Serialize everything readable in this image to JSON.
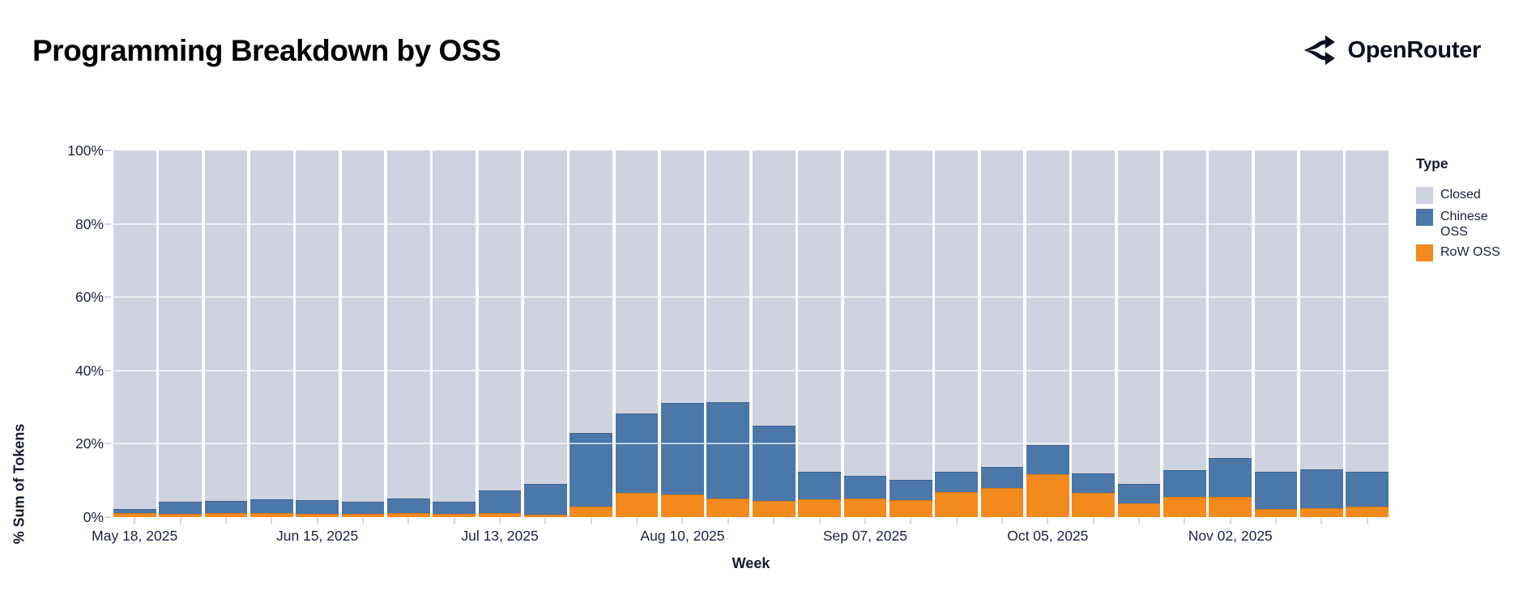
{
  "header": {
    "title": "Programming Breakdown by OSS",
    "brand": "OpenRouter"
  },
  "chart_data": {
    "type": "bar",
    "stacked": true,
    "normalized_percent": true,
    "title": "Programming Breakdown by OSS",
    "xlabel": "Week",
    "ylabel": "% Sum of Tokens",
    "ylim": [
      0,
      100
    ],
    "ytick_values": [
      0,
      20,
      40,
      60,
      80,
      100
    ],
    "ytick_labels": [
      "0%",
      "20%",
      "40%",
      "60%",
      "80%",
      "100%"
    ],
    "gridline_values": [
      20,
      40,
      60,
      80
    ],
    "x_tick_every": 4,
    "x_tick_labels": [
      "May 18, 2025",
      "Jun 15, 2025",
      "Jul 13, 2025",
      "Aug 10, 2025",
      "Sep 07, 2025",
      "Oct 05, 2025",
      "Nov 02, 2025"
    ],
    "categories": [
      "May 18, 2025",
      "May 25, 2025",
      "Jun 01, 2025",
      "Jun 08, 2025",
      "Jun 15, 2025",
      "Jun 22, 2025",
      "Jun 29, 2025",
      "Jul 06, 2025",
      "Jul 13, 2025",
      "Jul 20, 2025",
      "Jul 27, 2025",
      "Aug 03, 2025",
      "Aug 10, 2025",
      "Aug 17, 2025",
      "Aug 24, 2025",
      "Aug 31, 2025",
      "Sep 07, 2025",
      "Sep 14, 2025",
      "Sep 21, 2025",
      "Sep 28, 2025",
      "Oct 05, 2025",
      "Oct 12, 2025",
      "Oct 19, 2025",
      "Oct 26, 2025",
      "Nov 02, 2025",
      "Nov 09, 2025",
      "Nov 16, 2025",
      "Nov 23, 2025"
    ],
    "series": [
      {
        "name": "Closed",
        "color": "#cfd3e0",
        "values": [
          97.7,
          95.8,
          95.5,
          95.1,
          95.3,
          95.8,
          94.9,
          95.8,
          92.7,
          90.9,
          77.1,
          71.8,
          68.9,
          68.7,
          75.1,
          87.6,
          88.7,
          89.8,
          87.6,
          86.4,
          80.4,
          88.0,
          90.9,
          87.3,
          83.8,
          87.6,
          86.9,
          87.6
        ]
      },
      {
        "name": "Chinese OSS",
        "color": "#4b77a9",
        "values": [
          1.3,
          3.3,
          3.3,
          3.8,
          3.8,
          3.4,
          4.0,
          3.3,
          6.2,
          8.4,
          20.0,
          21.5,
          24.9,
          26.2,
          20.5,
          7.5,
          6.2,
          5.5,
          5.5,
          5.6,
          8.0,
          5.3,
          5.3,
          7.1,
          10.6,
          10.2,
          10.6,
          9.5
        ]
      },
      {
        "name": "RoW OSS",
        "color": "#f28a1e",
        "values": [
          1.0,
          0.9,
          1.2,
          1.1,
          0.9,
          0.8,
          1.1,
          0.9,
          1.1,
          0.7,
          2.9,
          6.7,
          6.2,
          5.1,
          4.4,
          4.9,
          5.1,
          4.7,
          6.9,
          8.0,
          11.6,
          6.7,
          3.8,
          5.6,
          5.6,
          2.2,
          2.5,
          2.9
        ]
      }
    ],
    "legend": {
      "title": "Type",
      "position": "right"
    }
  }
}
